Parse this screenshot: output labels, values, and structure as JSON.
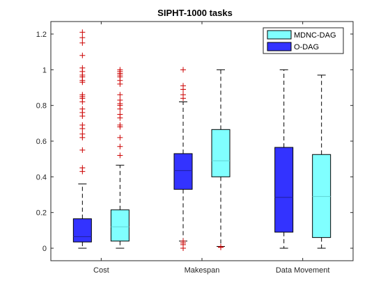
{
  "chart_data": {
    "type": "box",
    "title": "SIPHT-1000 tasks",
    "xlabel": "",
    "ylabel": "",
    "categories": [
      "Cost",
      "Makespan",
      "Data Movement"
    ],
    "ylim": [
      -0.07,
      1.27
    ],
    "yticks": [
      0,
      0.2,
      0.4,
      0.6,
      0.8,
      1,
      1.2
    ],
    "ytick_labels": [
      "0",
      "0.2",
      "0.4",
      "0.6",
      "0.8",
      "1",
      "1.2"
    ],
    "grid": false,
    "legend_position": "top-right",
    "series": [
      {
        "name": "MDNC-DAG",
        "color": "#80FFFF",
        "median_color": "#5FD3D3",
        "boxes": [
          {
            "min": 0.0,
            "q1": 0.04,
            "median": 0.12,
            "q3": 0.215,
            "max": 0.465,
            "outliers": [
              0.52,
              0.57,
              0.62,
              0.68,
              0.69,
              0.73,
              0.75,
              0.78,
              0.8,
              0.81,
              0.83,
              0.86,
              0.92,
              0.94,
              0.96,
              0.97,
              0.98,
              0.99,
              1.0
            ]
          },
          {
            "min": 0.01,
            "q1": 0.4,
            "median": 0.49,
            "q3": 0.665,
            "max": 1.0,
            "outliers": [
              0.005,
              0.008
            ]
          },
          {
            "min": 0.0,
            "q1": 0.06,
            "median": 0.29,
            "q3": 0.525,
            "max": 0.97,
            "outliers": []
          }
        ]
      },
      {
        "name": "O-DAG",
        "color": "#3333FF",
        "median_color": "#1F1F99",
        "boxes": [
          {
            "min": 0.0,
            "q1": 0.035,
            "median": 0.065,
            "q3": 0.165,
            "max": 0.36,
            "outliers": [
              0.43,
              0.45,
              0.55,
              0.62,
              0.64,
              0.67,
              0.69,
              0.74,
              0.76,
              0.78,
              0.82,
              0.84,
              0.85,
              0.86,
              0.93,
              0.94,
              0.96,
              0.97,
              0.99,
              1.01,
              1.08,
              1.15,
              1.18,
              1.21
            ]
          },
          {
            "min": 0.04,
            "q1": 0.33,
            "median": 0.435,
            "q3": 0.53,
            "max": 0.82,
            "outliers": [
              0.0,
              0.02,
              0.03,
              0.04,
              0.84,
              0.86,
              0.89,
              0.91,
              1.0
            ]
          },
          {
            "min": 0.0,
            "q1": 0.09,
            "median": 0.285,
            "q3": 0.565,
            "max": 1.0,
            "outliers": []
          }
        ]
      }
    ],
    "outlier_color": "#CC0000"
  }
}
